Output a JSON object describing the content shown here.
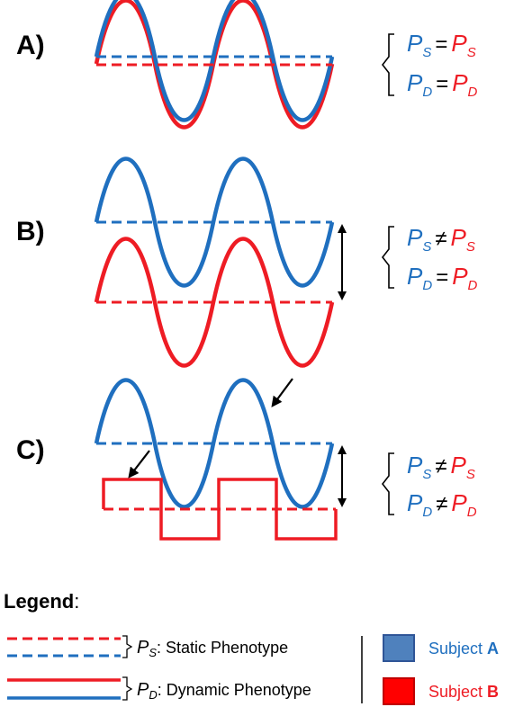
{
  "colors": {
    "subject_a": "#1f6fbf",
    "subject_b": "#ee1c24",
    "subject_a_swatch": "#4f81bd",
    "subject_b_swatch": "#ff0000"
  },
  "panels": [
    {
      "label": "A)",
      "static_relation": "=",
      "dynamic_relation": "="
    },
    {
      "label": "B)",
      "static_relation": "≠",
      "dynamic_relation": "="
    },
    {
      "label": "C)",
      "static_relation": "≠",
      "dynamic_relation": "≠"
    }
  ],
  "symbols": {
    "p": "P",
    "static_sub": "S",
    "dynamic_sub": "D"
  },
  "legend": {
    "title": "Legend",
    "colon": ":",
    "static_label": ": Static  Phenotype",
    "dynamic_label": ": Dynamic Phenotype",
    "subject_a_prefix": "Subject ",
    "subject_a_letter": "A",
    "subject_b_prefix": "Subject ",
    "subject_b_letter": "B"
  }
}
